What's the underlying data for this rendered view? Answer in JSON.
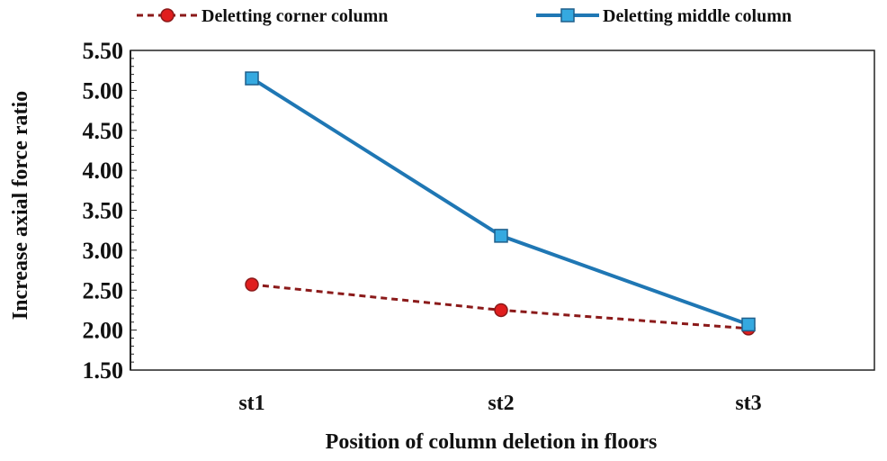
{
  "chart_data": {
    "type": "line",
    "title": "",
    "xlabel": "Position of column deletion in floors",
    "ylabel": "Increase axial force ratio",
    "categories": [
      "st1",
      "st2",
      "st3"
    ],
    "ylim": [
      1.5,
      5.5
    ],
    "yticks": [
      "1.50",
      "2.00",
      "2.50",
      "3.00",
      "3.50",
      "4.00",
      "4.50",
      "5.00",
      "5.50"
    ],
    "ytick_values": [
      1.5,
      2.0,
      2.5,
      3.0,
      3.5,
      4.0,
      4.5,
      5.0,
      5.5
    ],
    "grid": false,
    "legend_position": "top",
    "series": [
      {
        "name": "Deletting corner column",
        "values": [
          2.57,
          2.25,
          2.02
        ],
        "color": "#8b1a1a",
        "marker_color": "#e01e1e",
        "marker": "circle",
        "line_style": "dashed"
      },
      {
        "name": "Deletting middle column",
        "values": [
          5.15,
          3.18,
          2.07
        ],
        "color": "#1f77b4",
        "marker_color": "#35a9e0",
        "marker": "square",
        "line_style": "solid"
      }
    ]
  }
}
